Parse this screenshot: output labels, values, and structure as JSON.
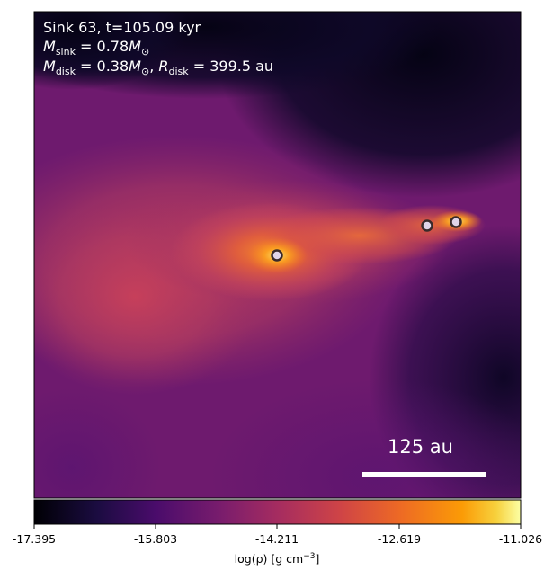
{
  "header": {
    "sink_line": "Sink 63, t=105.09 kyr",
    "msink_value": "0.78",
    "mdisk_value": "0.38",
    "rdisk_value": "399.5",
    "unit_au": "au"
  },
  "scale_bar": {
    "label": "125 au"
  },
  "colorbar": {
    "ticks": [
      "-17.395",
      "-15.803",
      "-14.211",
      "-12.619",
      "-11.026"
    ],
    "label_main": "log(ρ) [g cm",
    "label_exp": "−3",
    "label_close": "]",
    "colormap": "inferno",
    "range": [
      -17.395,
      -11.026
    ]
  },
  "sinks": [
    {
      "name": "sink-63",
      "role": "primary"
    },
    {
      "name": "companion-1",
      "role": "companion"
    },
    {
      "name": "companion-2",
      "role": "companion"
    }
  ]
}
